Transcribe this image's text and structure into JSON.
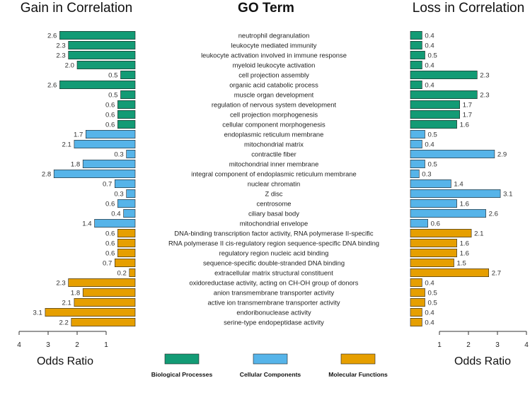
{
  "chart_data": {
    "type": "bar",
    "titles": {
      "left": "Gain in Correlation",
      "center": "GO Term",
      "right": "Loss in Correlation"
    },
    "xlabel_left": "Odds Ratio",
    "xlabel_right": "Odds Ratio",
    "left_ticks": [
      4,
      3,
      2,
      1
    ],
    "right_ticks": [
      1,
      2,
      3,
      4
    ],
    "left_xlim": [
      0,
      4
    ],
    "right_xlim": [
      0,
      4
    ],
    "colors": {
      "Biological Processes": "#139B75",
      "Cellular Components": "#56B4E9",
      "Molecular Functions": "#E69F00"
    },
    "legend": [
      "Biological Processes",
      "Cellular Components",
      "Molecular Functions"
    ],
    "categories": [
      {
        "term": "neutrophil degranulation",
        "group": "Biological Processes",
        "gain": 2.6,
        "loss": 0.4
      },
      {
        "term": "leukocyte mediated immunity",
        "group": "Biological Processes",
        "gain": 2.3,
        "loss": 0.4
      },
      {
        "term": "leukocyte activation involved in immune response",
        "group": "Biological Processes",
        "gain": 2.3,
        "loss": 0.5
      },
      {
        "term": "myeloid leukocyte activation",
        "group": "Biological Processes",
        "gain": 2.0,
        "loss": 0.4
      },
      {
        "term": "cell projection assembly",
        "group": "Biological Processes",
        "gain": 0.5,
        "loss": 2.3
      },
      {
        "term": "organic acid catabolic process",
        "group": "Biological Processes",
        "gain": 2.6,
        "loss": 0.4
      },
      {
        "term": "muscle organ development",
        "group": "Biological Processes",
        "gain": 0.5,
        "loss": 2.3
      },
      {
        "term": "regulation of nervous system development",
        "group": "Biological Processes",
        "gain": 0.6,
        "loss": 1.7
      },
      {
        "term": "cell projection morphogenesis",
        "group": "Biological Processes",
        "gain": 0.6,
        "loss": 1.7
      },
      {
        "term": "cellular component morphogenesis",
        "group": "Biological Processes",
        "gain": 0.6,
        "loss": 1.6
      },
      {
        "term": "endoplasmic reticulum membrane",
        "group": "Cellular Components",
        "gain": 1.7,
        "loss": 0.5
      },
      {
        "term": "mitochondrial matrix",
        "group": "Cellular Components",
        "gain": 2.1,
        "loss": 0.4
      },
      {
        "term": "contractile fiber",
        "group": "Cellular Components",
        "gain": 0.3,
        "loss": 2.9
      },
      {
        "term": "mitochondrial inner membrane",
        "group": "Cellular Components",
        "gain": 1.8,
        "loss": 0.5
      },
      {
        "term": "integral component of endoplasmic reticulum membrane",
        "group": "Cellular Components",
        "gain": 2.8,
        "loss": 0.3
      },
      {
        "term": "nuclear chromatin",
        "group": "Cellular Components",
        "gain": 0.7,
        "loss": 1.4
      },
      {
        "term": "Z disc",
        "group": "Cellular Components",
        "gain": 0.3,
        "loss": 3.1
      },
      {
        "term": "centrosome",
        "group": "Cellular Components",
        "gain": 0.6,
        "loss": 1.6
      },
      {
        "term": "ciliary basal body",
        "group": "Cellular Components",
        "gain": 0.4,
        "loss": 2.6
      },
      {
        "term": "mitochondrial envelope",
        "group": "Cellular Components",
        "gain": 1.4,
        "loss": 0.6
      },
      {
        "term": "DNA-binding transcription factor activity, RNA polymerase II-specific",
        "group": "Molecular Functions",
        "gain": 0.6,
        "loss": 2.1
      },
      {
        "term": "RNA polymerase II cis-regulatory region sequence-specific DNA binding",
        "group": "Molecular Functions",
        "gain": 0.6,
        "loss": 1.6
      },
      {
        "term": "regulatory region nucleic acid binding",
        "group": "Molecular Functions",
        "gain": 0.6,
        "loss": 1.6
      },
      {
        "term": "sequence-specific double-stranded DNA binding",
        "group": "Molecular Functions",
        "gain": 0.7,
        "loss": 1.5
      },
      {
        "term": "extracellular matrix structural constituent",
        "group": "Molecular Functions",
        "gain": 0.2,
        "loss": 2.7
      },
      {
        "term": "oxidoreductase activity, acting on CH-OH group of donors",
        "group": "Molecular Functions",
        "gain": 2.3,
        "loss": 0.4
      },
      {
        "term": "anion transmembrane transporter activity",
        "group": "Molecular Functions",
        "gain": 1.8,
        "loss": 0.5
      },
      {
        "term": "active ion transmembrane transporter activity",
        "group": "Molecular Functions",
        "gain": 2.1,
        "loss": 0.5
      },
      {
        "term": "endoribonuclease activity",
        "group": "Molecular Functions",
        "gain": 3.1,
        "loss": 0.4
      },
      {
        "term": "serine-type endopeptidase activity",
        "group": "Molecular Functions",
        "gain": 2.2,
        "loss": 0.4
      }
    ]
  }
}
